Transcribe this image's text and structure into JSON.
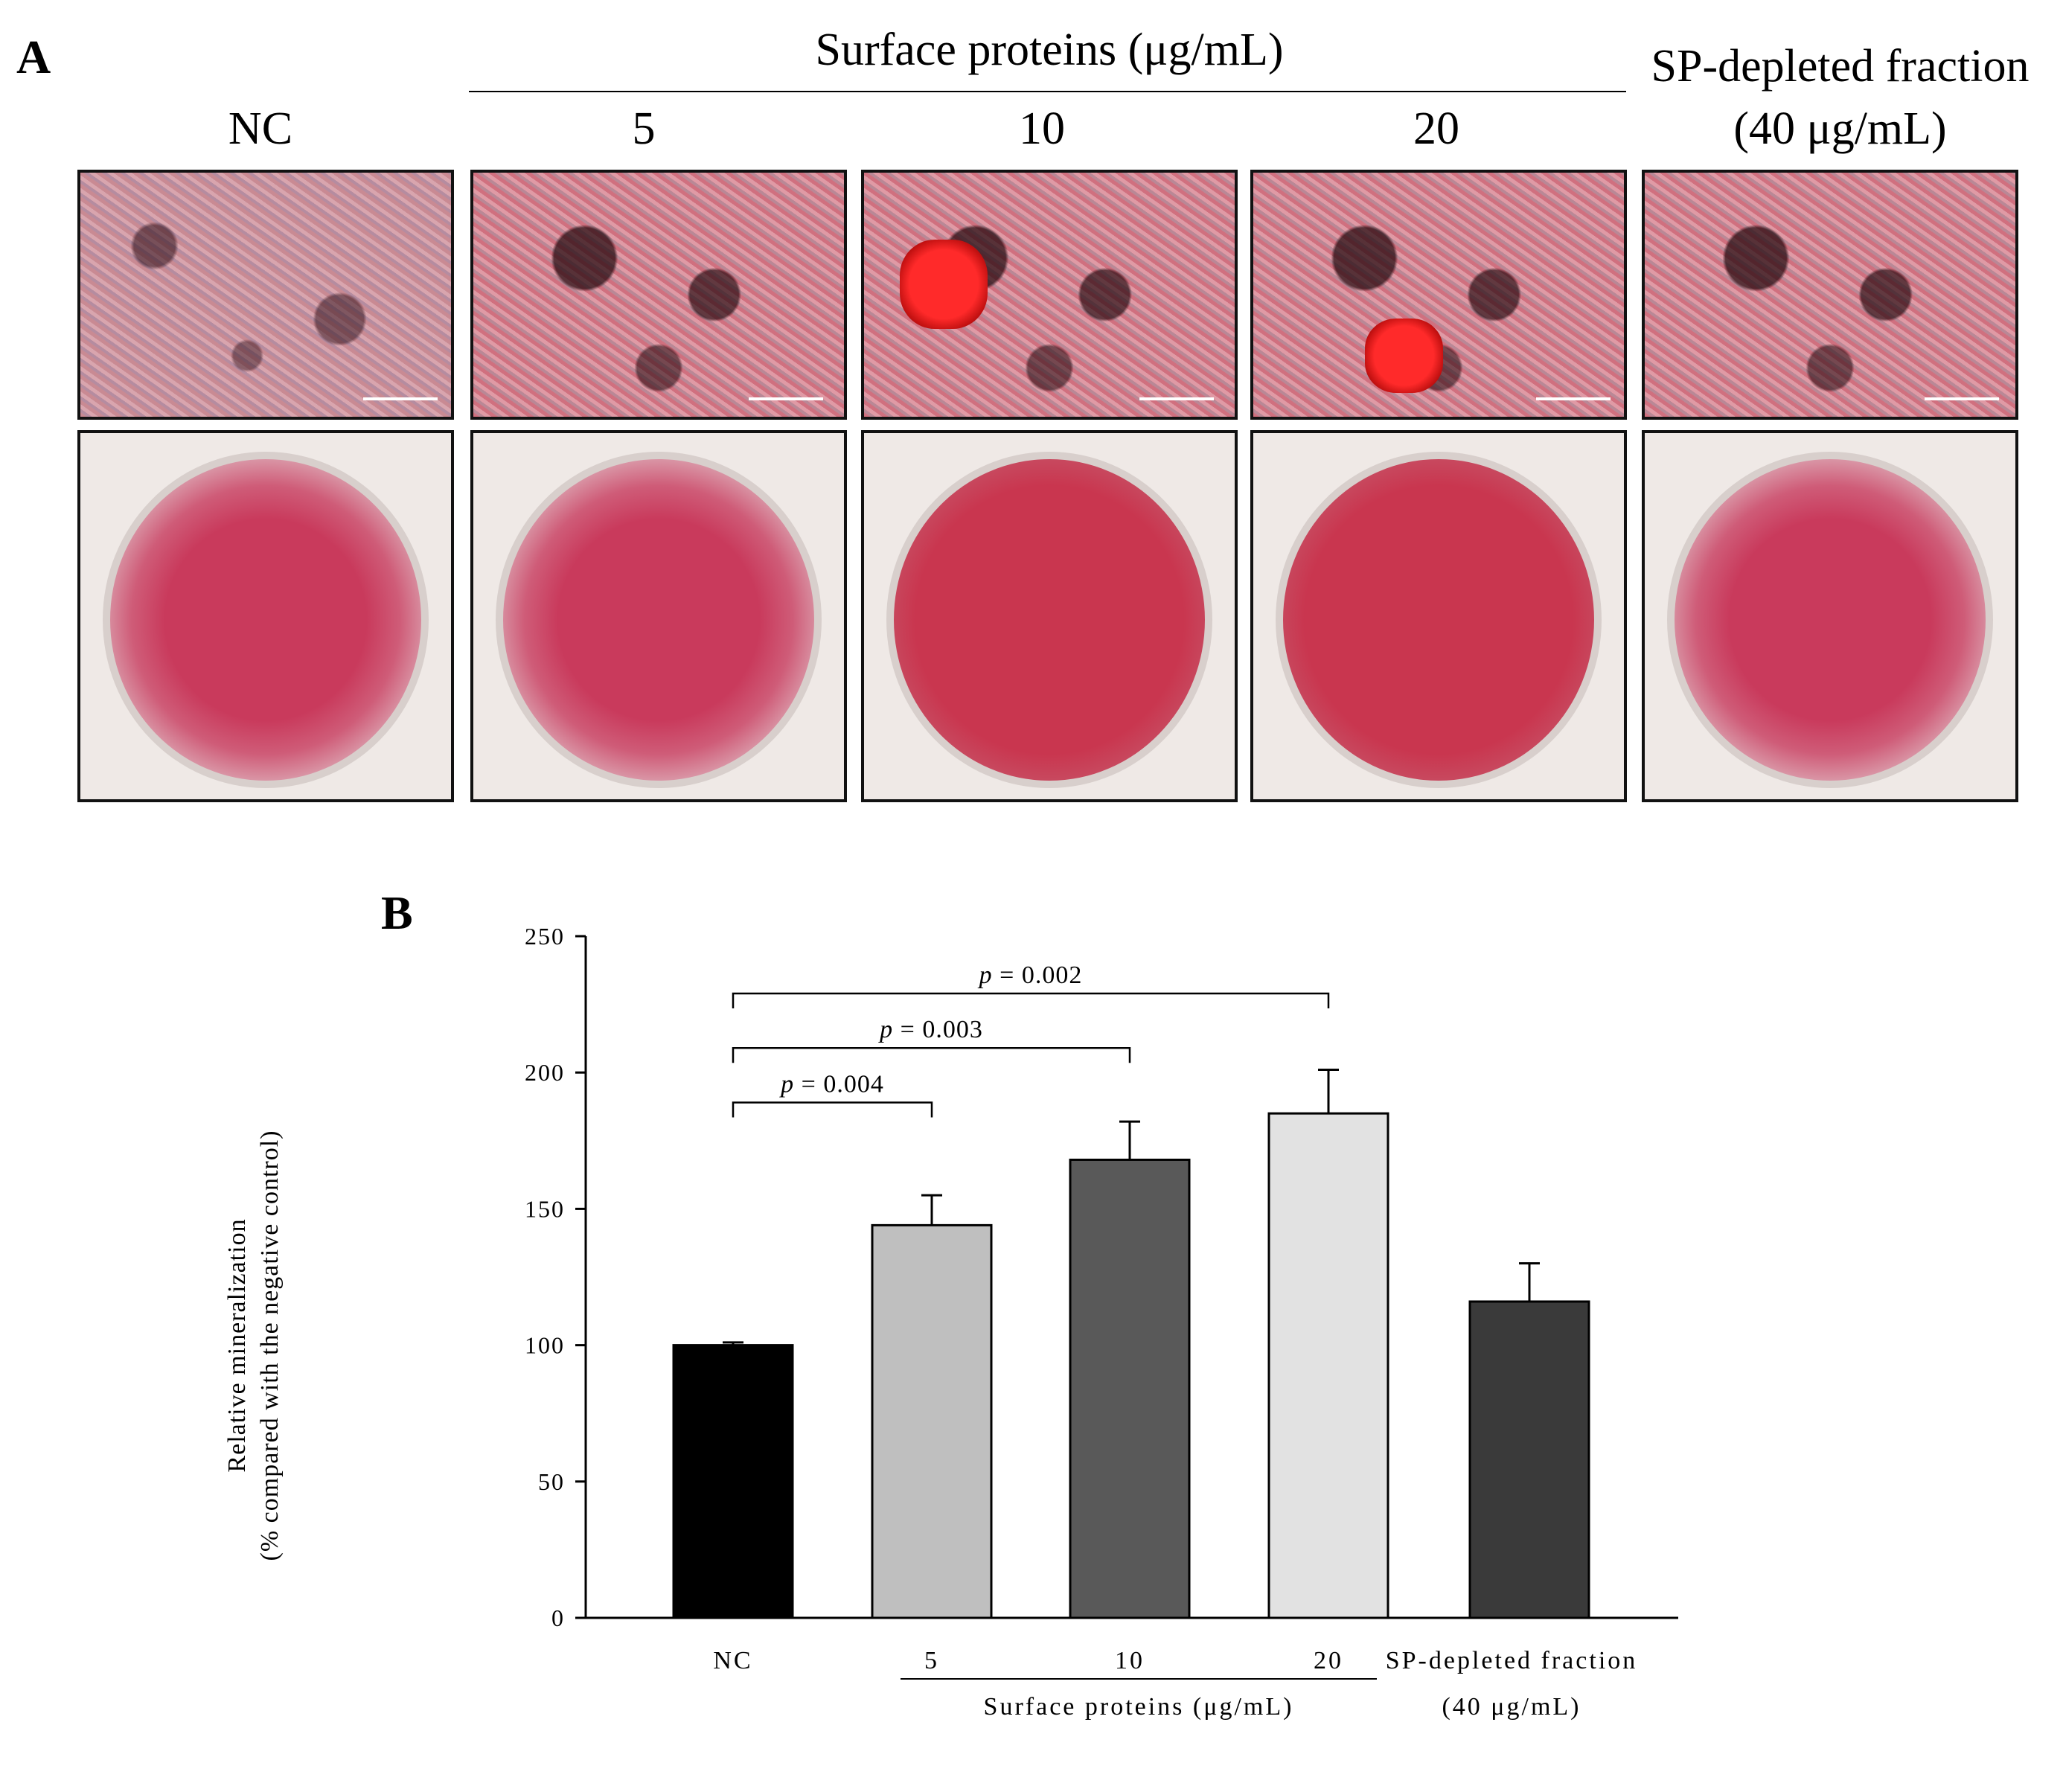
{
  "panel_a": {
    "label": "A",
    "group_header": "Surface proteins (μg/mL)",
    "columns": [
      "NC",
      "5",
      "10",
      "20"
    ],
    "sp_depleted_line1": "SP-depleted fraction",
    "sp_depleted_line2": "(40 μg/mL)"
  },
  "panel_b_label": "B",
  "chart_data": {
    "type": "bar",
    "categories": [
      "NC",
      "5",
      "10",
      "20",
      "SP-depleted fraction"
    ],
    "category_sublabel_sp": "(40 μg/mL)",
    "group_label": "Surface proteins (μg/mL)",
    "values": [
      100,
      144,
      168,
      185,
      116
    ],
    "errors": [
      1,
      11,
      14,
      16,
      14
    ],
    "bar_colors": [
      "#000000",
      "#bfbfbf",
      "#595959",
      "#e2e2e2",
      "#3a3a3a"
    ],
    "ylabel_line1": "Relative mineralization",
    "ylabel_line2": "(% compared with the negative control)",
    "ylim": [
      0,
      250
    ],
    "yticks": [
      "0",
      "50",
      "100",
      "150",
      "200",
      "250"
    ],
    "grid": false,
    "annotations": [
      {
        "from": 0,
        "to": 1,
        "italic": "p",
        "text": " = 0.004",
        "y": 189
      },
      {
        "from": 0,
        "to": 2,
        "italic": "p",
        "text": " = 0.003",
        "y": 209
      },
      {
        "from": 0,
        "to": 3,
        "italic": "p",
        "text": " = 0.002",
        "y": 229
      }
    ]
  }
}
